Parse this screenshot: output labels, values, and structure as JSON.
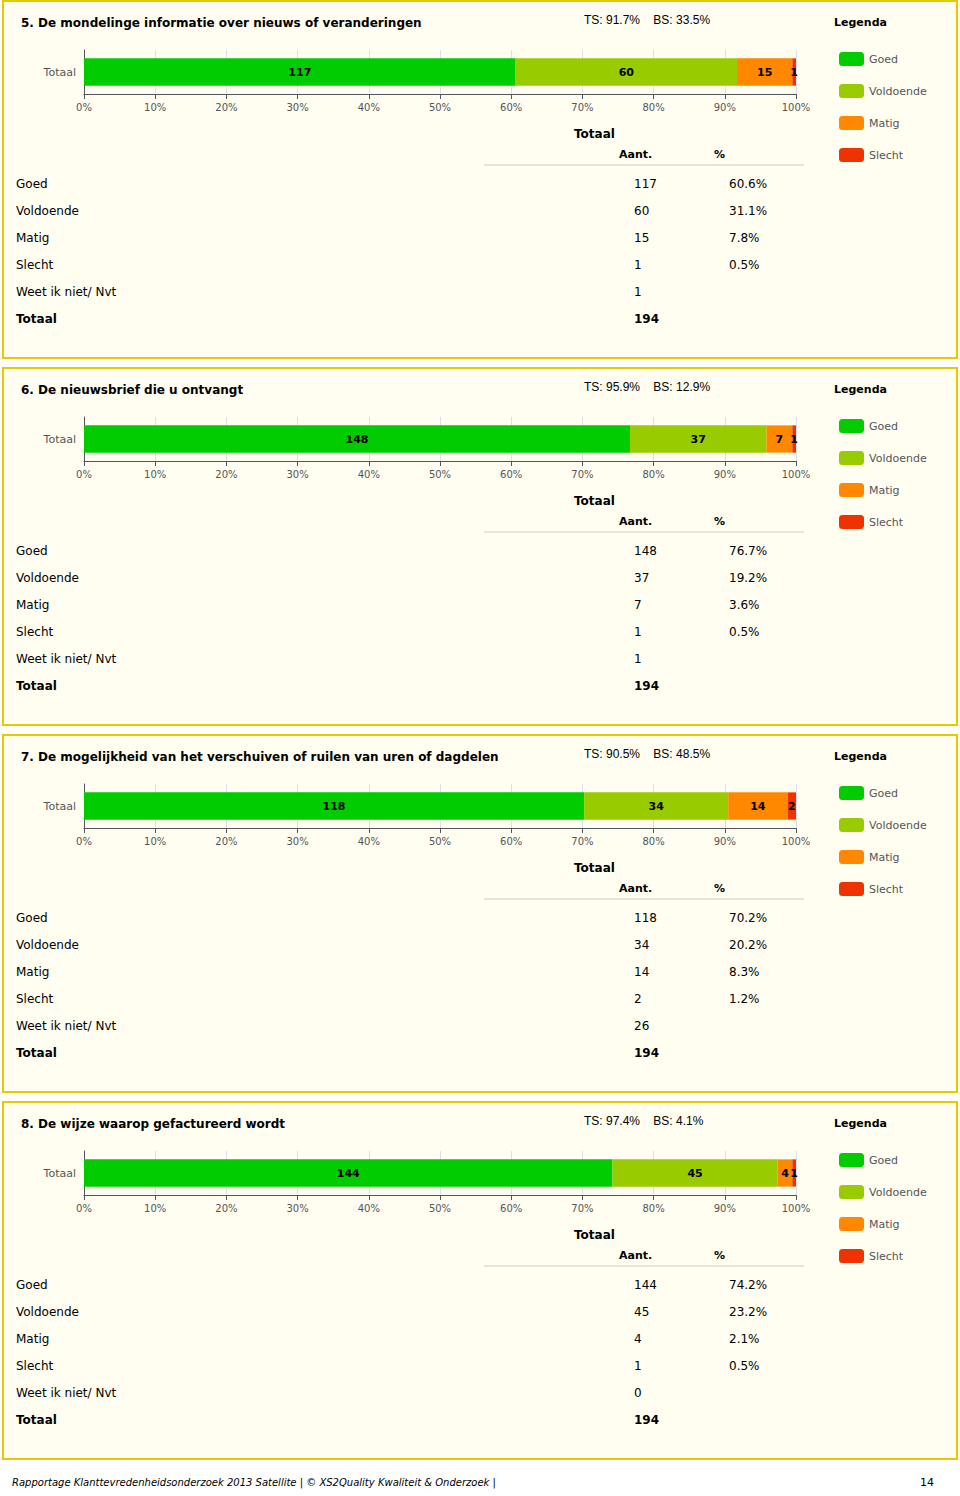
{
  "chart_data": [
    {
      "type": "bar",
      "orientation": "horizontal",
      "stacked": true,
      "grid": true,
      "legend": "right",
      "title": "5. De mondelinge informatie over nieuws of veranderingen",
      "annotations": [
        "TS: 91.7%    BS: 33.5%"
      ],
      "categories": [
        "Totaal"
      ],
      "series": [
        {
          "name": "Goed",
          "color": "#00CC00",
          "values": [
            60.62176165803109
          ],
          "counts": [
            117
          ]
        },
        {
          "name": "Voldoende",
          "color": "#99CC00",
          "values": [
            31.088082901554404
          ],
          "counts": [
            60
          ]
        },
        {
          "name": "Matig",
          "color": "#FF8800",
          "values": [
            7.772020725388601
          ],
          "counts": [
            15
          ]
        },
        {
          "name": "Slecht",
          "color": "#EE3300",
          "values": [
            0.5181347150259068
          ],
          "counts": [
            1
          ]
        }
      ],
      "xlim": [
        0,
        100
      ],
      "xticks": [
        {
          "value": 0,
          "label": "0%"
        },
        {
          "value": 10,
          "label": "10%"
        },
        {
          "value": 20,
          "label": "20%"
        },
        {
          "value": 30,
          "label": "30%"
        },
        {
          "value": 40,
          "label": "40%"
        },
        {
          "value": 50,
          "label": "50%"
        },
        {
          "value": 60,
          "label": "60%"
        },
        {
          "value": 70,
          "label": "70%"
        },
        {
          "value": 80,
          "label": "80%"
        },
        {
          "value": 90,
          "label": "90%"
        },
        {
          "value": 100,
          "label": "100%"
        }
      ],
      "legend_title": "Legenda",
      "table": {
        "header": [
          "Totaal",
          "Aant.",
          "%"
        ],
        "rows": [
          [
            "Goed",
            "117",
            "60.6%"
          ],
          [
            "Voldoende",
            "60",
            "31.1%"
          ],
          [
            "Matig",
            "15",
            "7.8%"
          ],
          [
            "Slecht",
            "1",
            "0.5%"
          ],
          [
            "Weet ik niet/ Nvt",
            "1"
          ],
          [
            "Totaal",
            "194"
          ]
        ]
      }
    },
    {
      "type": "bar",
      "orientation": "horizontal",
      "stacked": true,
      "grid": true,
      "legend": "right",
      "title": "6. De nieuwsbrief die u ontvangt",
      "annotations": [
        "TS: 95.9%    BS: 12.9%"
      ],
      "categories": [
        "Totaal"
      ],
      "series": [
        {
          "name": "Goed",
          "color": "#00CC00",
          "values": [
            76.6839378238342
          ],
          "counts": [
            148
          ]
        },
        {
          "name": "Voldoende",
          "color": "#99CC00",
          "values": [
            19.170984455958546
          ],
          "counts": [
            37
          ]
        },
        {
          "name": "Matig",
          "color": "#FF8800",
          "values": [
            3.6269430051813467
          ],
          "counts": [
            7
          ]
        },
        {
          "name": "Slecht",
          "color": "#EE3300",
          "values": [
            0.5181347150259068
          ],
          "counts": [
            1
          ]
        }
      ],
      "xlim": [
        0,
        100
      ],
      "xticks": [
        {
          "value": 0,
          "label": "0%"
        },
        {
          "value": 10,
          "label": "10%"
        },
        {
          "value": 20,
          "label": "20%"
        },
        {
          "value": 30,
          "label": "30%"
        },
        {
          "value": 40,
          "label": "40%"
        },
        {
          "value": 50,
          "label": "50%"
        },
        {
          "value": 60,
          "label": "60%"
        },
        {
          "value": 70,
          "label": "70%"
        },
        {
          "value": 80,
          "label": "80%"
        },
        {
          "value": 90,
          "label": "90%"
        },
        {
          "value": 100,
          "label": "100%"
        }
      ],
      "legend_title": "Legenda",
      "table": {
        "header": [
          "Totaal",
          "Aant.",
          "%"
        ],
        "rows": [
          [
            "Goed",
            "148",
            "76.7%"
          ],
          [
            "Voldoende",
            "37",
            "19.2%"
          ],
          [
            "Matig",
            "7",
            "3.6%"
          ],
          [
            "Slecht",
            "1",
            "0.5%"
          ],
          [
            "Weet ik niet/ Nvt",
            "1"
          ],
          [
            "Totaal",
            "194"
          ]
        ]
      }
    },
    {
      "type": "bar",
      "orientation": "horizontal",
      "stacked": true,
      "grid": true,
      "legend": "right",
      "title": "7. De mogelijkheid van het verschuiven of ruilen van uren of dagdelen",
      "annotations": [
        "TS: 90.5%    BS: 48.5%"
      ],
      "categories": [
        "Totaal"
      ],
      "series": [
        {
          "name": "Goed",
          "color": "#00CC00",
          "values": [
            70.23809523809524
          ],
          "counts": [
            118
          ]
        },
        {
          "name": "Voldoende",
          "color": "#99CC00",
          "values": [
            20.238095238095237
          ],
          "counts": [
            34
          ]
        },
        {
          "name": "Matig",
          "color": "#FF8800",
          "values": [
            8.333333333333332
          ],
          "counts": [
            14
          ]
        },
        {
          "name": "Slecht",
          "color": "#EE3300",
          "values": [
            1.1904761904761905
          ],
          "counts": [
            2
          ]
        }
      ],
      "xlim": [
        0,
        100
      ],
      "xticks": [
        {
          "value": 0,
          "label": "0%"
        },
        {
          "value": 10,
          "label": "10%"
        },
        {
          "value": 20,
          "label": "20%"
        },
        {
          "value": 30,
          "label": "30%"
        },
        {
          "value": 40,
          "label": "40%"
        },
        {
          "value": 50,
          "label": "50%"
        },
        {
          "value": 60,
          "label": "60%"
        },
        {
          "value": 70,
          "label": "70%"
        },
        {
          "value": 80,
          "label": "80%"
        },
        {
          "value": 90,
          "label": "90%"
        },
        {
          "value": 100,
          "label": "100%"
        }
      ],
      "legend_title": "Legenda",
      "table": {
        "header": [
          "Totaal",
          "Aant.",
          "%"
        ],
        "rows": [
          [
            "Goed",
            "118",
            "70.2%"
          ],
          [
            "Voldoende",
            "34",
            "20.2%"
          ],
          [
            "Matig",
            "14",
            "8.3%"
          ],
          [
            "Slecht",
            "2",
            "1.2%"
          ],
          [
            "Weet ik niet/ Nvt",
            "26"
          ],
          [
            "Totaal",
            "194"
          ]
        ]
      }
    },
    {
      "type": "bar",
      "orientation": "horizontal",
      "stacked": true,
      "grid": true,
      "legend": "right",
      "title": "8. De wijze waarop gefactureerd wordt",
      "annotations": [
        "TS: 97.4%    BS: 4.1%"
      ],
      "categories": [
        "Totaal"
      ],
      "series": [
        {
          "name": "Goed",
          "color": "#00CC00",
          "values": [
            74.22680412371135
          ],
          "counts": [
            144
          ]
        },
        {
          "name": "Voldoende",
          "color": "#99CC00",
          "values": [
            23.195876288659793
          ],
          "counts": [
            45
          ]
        },
        {
          "name": "Matig",
          "color": "#FF8800",
          "values": [
            2.0618556701030926
          ],
          "counts": [
            4
          ]
        },
        {
          "name": "Slecht",
          "color": "#EE3300",
          "values": [
            0.5154639175257731
          ],
          "counts": [
            1
          ]
        }
      ],
      "xlim": [
        0,
        100
      ],
      "xticks": [
        {
          "value": 0,
          "label": "0%"
        },
        {
          "value": 10,
          "label": "10%"
        },
        {
          "value": 20,
          "label": "20%"
        },
        {
          "value": 30,
          "label": "30%"
        },
        {
          "value": 40,
          "label": "40%"
        },
        {
          "value": 50,
          "label": "50%"
        },
        {
          "value": 60,
          "label": "60%"
        },
        {
          "value": 70,
          "label": "70%"
        },
        {
          "value": 80,
          "label": "80%"
        },
        {
          "value": 90,
          "label": "90%"
        },
        {
          "value": 100,
          "label": "100%"
        }
      ],
      "legend_title": "Legenda",
      "table": {
        "header": [
          "Totaal",
          "Aant.",
          "%"
        ],
        "rows": [
          [
            "Goed",
            "144",
            "74.2%"
          ],
          [
            "Voldoende",
            "45",
            "23.2%"
          ],
          [
            "Matig",
            "4",
            "2.1%"
          ],
          [
            "Slecht",
            "1",
            "0.5%"
          ],
          [
            "Weet ik niet/ Nvt",
            "0"
          ],
          [
            "Totaal",
            "194"
          ]
        ]
      }
    }
  ],
  "footer": "Rapportage Klanttevredenheidsonderzoek 2013 Satellite  |  © XS2Quality Kwaliteit & Onderzoek  |",
  "page_number": "14"
}
